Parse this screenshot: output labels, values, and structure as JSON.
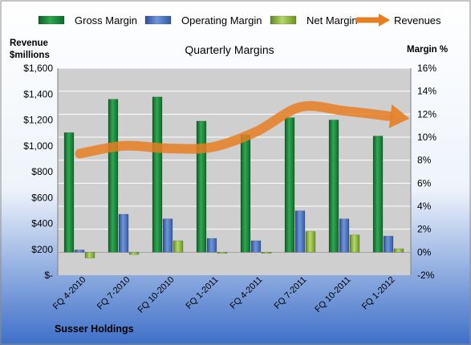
{
  "chart_data": {
    "type": "bar",
    "title": "Quarterly Margins",
    "footer": "Susser Holdings",
    "left_axis_title_line1": "Revenue",
    "left_axis_title_line2": "$millions",
    "right_axis_title": "Margin %",
    "categories": [
      "FQ 4-2010",
      "FQ 7-2010",
      "FQ 10-2010",
      "FQ 1-2011",
      "FQ 4-2011",
      "FQ 7-2011",
      "FQ 10-2011",
      "FQ 1-2012"
    ],
    "left_axis": {
      "ylim": [
        0,
        1600
      ],
      "tick_values": [
        0,
        200,
        400,
        600,
        800,
        1000,
        1200,
        1400,
        1600
      ],
      "tick_labels": [
        "$-",
        "$200",
        "$400",
        "$600",
        "$800",
        "$1,000",
        "$1,200",
        "$1,400",
        "$1,600"
      ]
    },
    "right_axis": {
      "ylim": [
        -2,
        16
      ],
      "tick_values": [
        -2,
        0,
        2,
        4,
        6,
        8,
        10,
        12,
        14,
        16
      ],
      "tick_labels": [
        "-2%",
        "0%",
        "2%",
        "4%",
        "6%",
        "8%",
        "10%",
        "12%",
        "14%",
        "16%"
      ]
    },
    "series": [
      {
        "name": "Gross Margin",
        "axis": "right",
        "color": "#1a8a3c",
        "values": [
          10.4,
          13.3,
          13.5,
          11.4,
          10.2,
          11.7,
          11.5,
          10.1
        ]
      },
      {
        "name": "Operating Margin",
        "axis": "right",
        "color": "#4b74c0",
        "values": [
          0.2,
          3.3,
          2.9,
          1.2,
          1.0,
          3.6,
          2.9,
          1.4
        ]
      },
      {
        "name": "Net Margin",
        "axis": "right",
        "color": "#93bb3c",
        "values": [
          -0.5,
          -0.2,
          1.0,
          -0.1,
          -0.1,
          1.8,
          1.5,
          0.3
        ]
      },
      {
        "name": "Revenues",
        "axis": "left",
        "type": "line",
        "color": "#e67e22",
        "values": [
          940,
          1000,
          980,
          990,
          1110,
          1300,
          1270,
          1230
        ]
      }
    ],
    "grid": true,
    "legend_position": "top",
    "colors": {
      "background_top": "#ffffff",
      "background_bottom": "#3d6fc8",
      "plot_area": "#cfcfcf",
      "gridline": "#ffffff"
    }
  }
}
